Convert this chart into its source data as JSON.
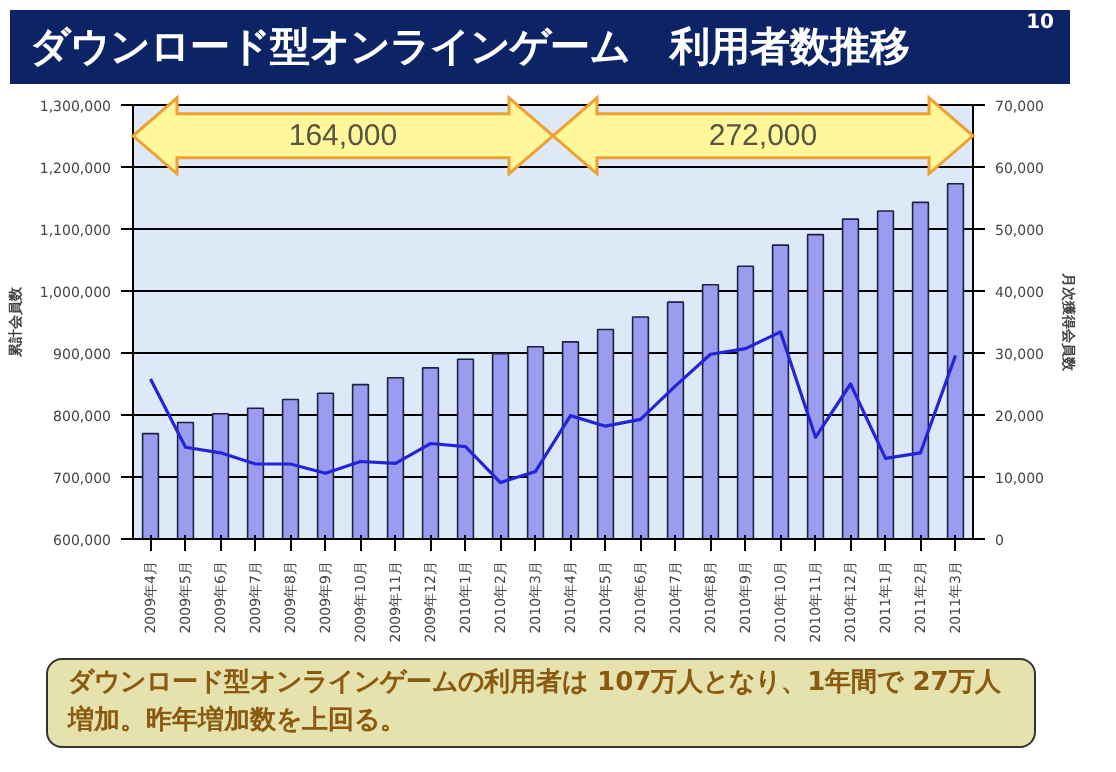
{
  "chart_data": {
    "type": "bar",
    "title": "ダウンロード型オンラインゲーム　利用者数推移",
    "categories": [
      "2009年4月",
      "2009年5月",
      "2009年6月",
      "2009年7月",
      "2009年8月",
      "2009年9月",
      "2009年10月",
      "2009年11月",
      "2009年12月",
      "2010年1月",
      "2010年2月",
      "2010年3月",
      "2010年4月",
      "2010年5月",
      "2010年6月",
      "2010年7月",
      "2010年8月",
      "2010年9月",
      "2010年10月",
      "2010年11月",
      "2010年12月",
      "2011年1月",
      "2011年2月",
      "2011年3月"
    ],
    "series": [
      {
        "color": "#9a9cf0",
        "values": [
          770000,
          788000,
          802000,
          811000,
          825000,
          835000,
          849000,
          860000,
          876000,
          890000,
          899000,
          910000,
          918000,
          938000,
          958000,
          982000,
          1010000,
          1040000,
          1074000,
          1091000,
          1116000,
          1129000,
          1143000,
          1173000
        ]
      },
      {
        "type": "line",
        "axis": "y2",
        "color": "#2424d8",
        "values": [
          25800,
          14800,
          13900,
          12100,
          12100,
          10600,
          12500,
          12200,
          15400,
          14900,
          9100,
          10900,
          19900,
          18200,
          19300,
          24700,
          29800,
          30700,
          33400,
          16400,
          25000,
          13000,
          13900,
          29600
        ]
      }
    ],
    "ylabel": "累計会員数",
    "y2label": "月次獲得会員数",
    "ylim": [
      600000,
      1300000
    ],
    "yticks": [
      {
        "value": 600000,
        "label": "600,000"
      },
      {
        "value": 700000,
        "label": "700,000"
      },
      {
        "value": 800000,
        "label": "800,000"
      },
      {
        "value": 900000,
        "label": "900,000"
      },
      {
        "value": 1000000,
        "label": "1,000,000"
      },
      {
        "value": 1100000,
        "label": "1,100,000"
      },
      {
        "value": 1200000,
        "label": "1,200,000"
      },
      {
        "value": 1300000,
        "label": "1,300,000"
      }
    ],
    "y2lim": [
      0,
      70000
    ],
    "y2ticks": [
      0,
      {
        "value": 10000,
        "label": "10,000"
      },
      {
        "value": 20000,
        "label": "20,000"
      },
      {
        "value": 30000,
        "label": "30,000"
      },
      {
        "value": 40000,
        "label": "40,000"
      },
      {
        "value": 50000,
        "label": "50,000"
      },
      {
        "value": 60000,
        "label": "60,000"
      },
      {
        "value": 70000,
        "label": "70,000"
      }
    ],
    "grid": "y",
    "annotations": [
      "164,000",
      "272,000",
      "ダウンロード型オンラインゲームの利用者は 107万人となり、1年間で 27万人増加。昨年増加数を上回る。",
      "10"
    ]
  }
}
